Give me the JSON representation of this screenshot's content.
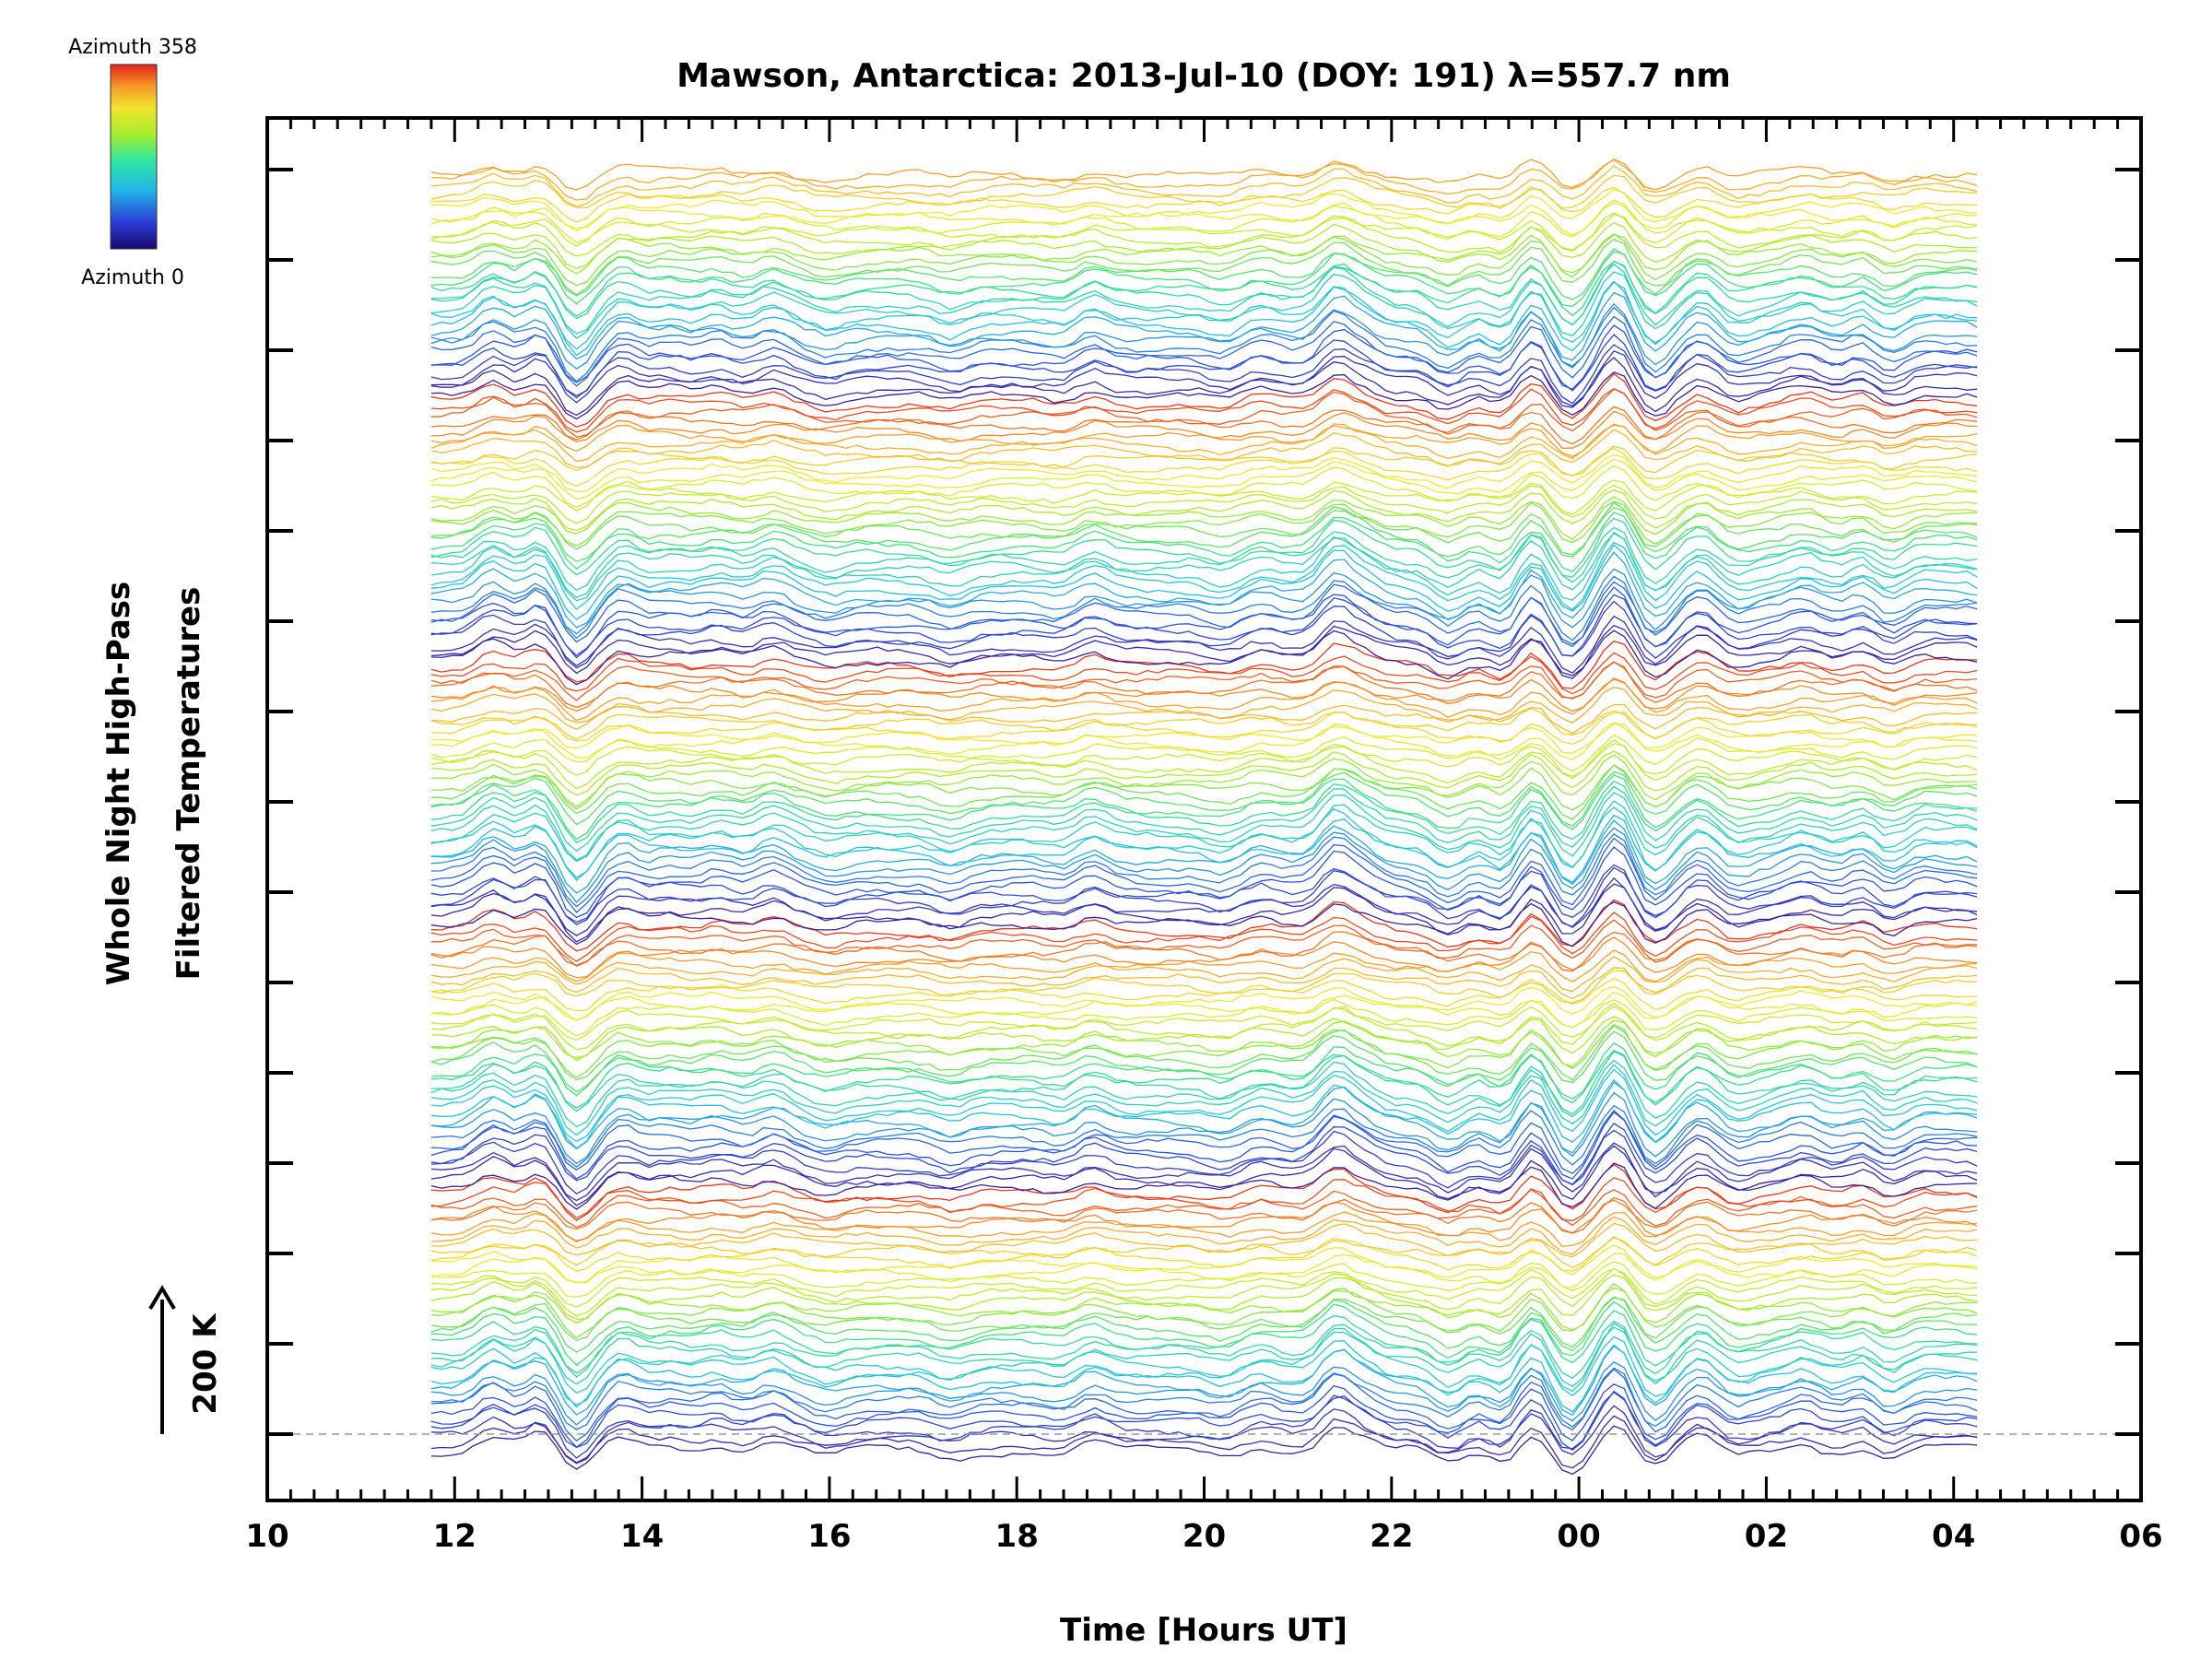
{
  "chart_data": {
    "type": "line",
    "title": "Mawson, Antarctica: 2013-Jul-10 (DOY: 191) λ=557.7 nm",
    "xlabel": "Time [Hours UT]",
    "ylabel_line1": "Whole Night High-Pass",
    "ylabel_line2": "Filtered Temperatures",
    "scale_label": "200 K",
    "colorbar_top_label": "Azimuth  358",
    "colorbar_bottom_label": "Azimuth  0",
    "xlim_hours": [
      10,
      30
    ],
    "x_tick_labels": [
      "10",
      "12",
      "14",
      "16",
      "18",
      "20",
      "22",
      "00",
      "02",
      "04",
      "06"
    ],
    "y_major_tick_count": 15,
    "data_start_hour": 11.75,
    "data_end_hour": 28.25,
    "series_count": 180,
    "series_offset_K": 26.7,
    "scale_bar_K": 200,
    "baseline_dashed": true,
    "colormap": [
      "#3a1f9c",
      "#2b55e0",
      "#23c6e0",
      "#35e08a",
      "#a8ec2c",
      "#f1ec30",
      "#f6a32a",
      "#e8381e"
    ]
  }
}
